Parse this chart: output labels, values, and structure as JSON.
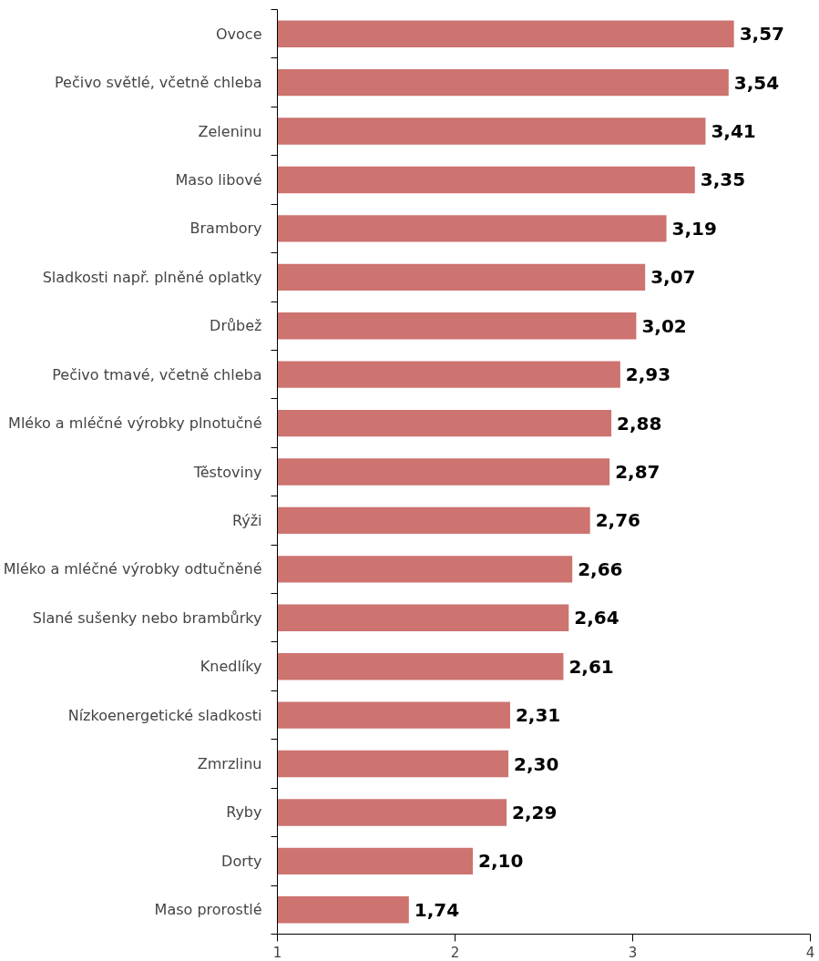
{
  "chart_data": {
    "type": "bar",
    "orientation": "horizontal",
    "categories": [
      "Ovoce",
      "Pečivo světlé, včetně chleba",
      "Zeleninu",
      "Maso libové",
      "Brambory",
      "Sladkosti např. plněné oplatky",
      "Drůbež",
      "Pečivo tmavé, včetně chleba",
      "Mléko a mléčné výrobky plnotučné",
      "Těstoviny",
      "Rýži",
      "Mléko a mléčné výrobky odtučněné",
      "Slané sušenky nebo brambůrky",
      "Knedlíky",
      "Nízkoenergetické sladkosti",
      "Zmrzlinu",
      "Ryby",
      "Dorty",
      "Maso prorostlé"
    ],
    "values": [
      3.57,
      3.54,
      3.41,
      3.35,
      3.19,
      3.07,
      3.02,
      2.93,
      2.88,
      2.87,
      2.76,
      2.66,
      2.64,
      2.61,
      2.31,
      2.3,
      2.29,
      2.1,
      1.74
    ],
    "value_labels": [
      "3,57",
      "3,54",
      "3,41",
      "3,35",
      "3,19",
      "3,07",
      "3,02",
      "2,93",
      "2,88",
      "2,87",
      "2,76",
      "2,66",
      "2,64",
      "2,61",
      "2,31",
      "2,30",
      "2,29",
      "2,10",
      "1,74"
    ],
    "color": "#cd7370",
    "xlim": [
      1,
      4
    ],
    "xticks": [
      1,
      2,
      3,
      4
    ],
    "grid": false
  }
}
